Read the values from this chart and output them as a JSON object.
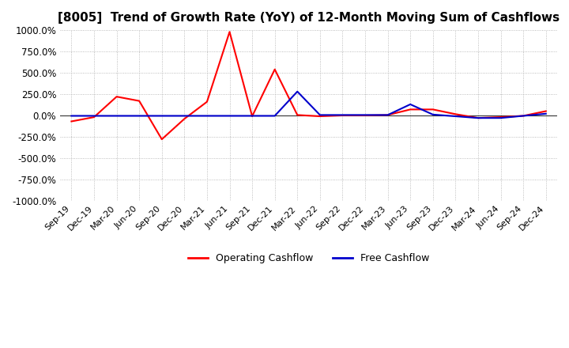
{
  "title": "[8005]  Trend of Growth Rate (YoY) of 12-Month Moving Sum of Cashflows",
  "ylim": [
    -1000,
    1000
  ],
  "yticks": [
    -1000,
    -750,
    -500,
    -250,
    0,
    250,
    500,
    750,
    1000
  ],
  "background_color": "#ffffff",
  "grid_color": "#aaaaaa",
  "operating_color": "#ff0000",
  "free_color": "#0000cc",
  "x_labels": [
    "Sep-19",
    "Dec-19",
    "Mar-20",
    "Jun-20",
    "Sep-20",
    "Dec-20",
    "Mar-21",
    "Jun-21",
    "Sep-21",
    "Dec-21",
    "Mar-22",
    "Jun-22",
    "Sep-22",
    "Dec-22",
    "Mar-23",
    "Jun-23",
    "Sep-23",
    "Dec-23",
    "Mar-24",
    "Jun-24",
    "Sep-24",
    "Dec-24"
  ],
  "operating_cashflow": [
    -70,
    -20,
    220,
    170,
    -280,
    -40,
    160,
    980,
    -10,
    540,
    5,
    -10,
    0,
    0,
    5,
    70,
    70,
    15,
    -30,
    -20,
    -5,
    50
  ],
  "free_cashflow": [
    -5,
    -5,
    -5,
    -5,
    -5,
    -5,
    -5,
    -5,
    -5,
    -5,
    280,
    5,
    5,
    5,
    5,
    130,
    10,
    -10,
    -30,
    -30,
    -5,
    20
  ]
}
